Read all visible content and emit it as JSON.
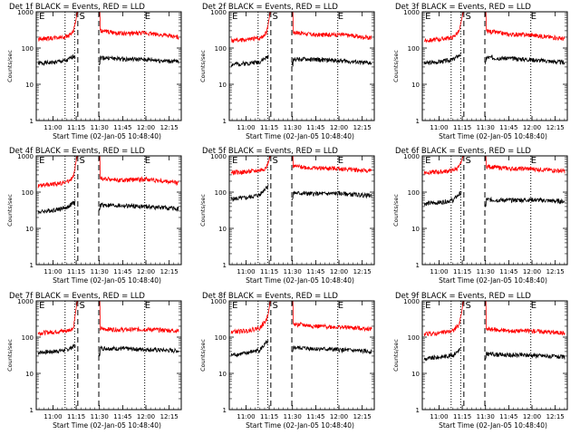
{
  "figure": {
    "axis_style": {
      "y_scale": "log",
      "ylim": [
        1,
        1000
      ],
      "yticks": [
        1,
        10,
        100,
        1000
      ],
      "ytick_labels": [
        "1",
        "10",
        "100",
        "1000"
      ],
      "xlim": [
        10.82,
        12.38
      ],
      "xticks": [
        11.0,
        11.25,
        11.5,
        11.75,
        12.0,
        12.25
      ],
      "xtick_labels": [
        "11:00",
        "11:15",
        "11:30",
        "11:45",
        "12:00",
        "12:15"
      ],
      "ylabel": "Counts/sec",
      "xlabel": "Start Time (02-Jan-05 10:48:40)",
      "event_color": "#000000",
      "lld_color": "#ff0000"
    },
    "markers": {
      "dotted": [
        11.13,
        11.233,
        11.987
      ],
      "dashed": [
        11.267,
        11.493
      ],
      "labels": [
        {
          "text": "E",
          "x": 10.85
        },
        {
          "text": "S",
          "x": 11.283
        },
        {
          "text": "E",
          "x": 11.987
        }
      ]
    }
  },
  "chart_data": [
    {
      "type": "line",
      "title": "Det 1f BLACK = Events, RED = LLD",
      "seed": 1,
      "series": [
        {
          "name": "Events",
          "color": "#000000",
          "x": [
            10.84,
            11.0,
            11.15,
            11.22,
            11.26,
            11.5,
            11.75,
            12.0,
            12.35
          ],
          "y": [
            38,
            40,
            45,
            60,
            62,
            55,
            50,
            48,
            42
          ]
        },
        {
          "name": "LLD",
          "color": "#ff0000",
          "x": [
            10.84,
            11.0,
            11.15,
            11.22,
            11.26,
            11.5,
            11.75,
            12.0,
            12.35
          ],
          "y": [
            180,
            190,
            210,
            280,
            900,
            300,
            250,
            260,
            200
          ]
        }
      ]
    },
    {
      "type": "line",
      "title": "Det 2f BLACK = Events, RED = LLD",
      "seed": 2,
      "series": [
        {
          "name": "Events",
          "color": "#000000",
          "x": [
            10.84,
            11.0,
            11.15,
            11.22,
            11.26,
            11.5,
            11.75,
            12.0,
            12.35
          ],
          "y": [
            35,
            38,
            42,
            55,
            60,
            50,
            48,
            45,
            38
          ]
        },
        {
          "name": "LLD",
          "color": "#ff0000",
          "x": [
            10.84,
            11.0,
            11.15,
            11.22,
            11.26,
            11.5,
            11.75,
            12.0,
            12.35
          ],
          "y": [
            160,
            170,
            190,
            260,
            900,
            280,
            230,
            240,
            190
          ]
        }
      ]
    },
    {
      "type": "line",
      "title": "Det 3f BLACK = Events, RED = LLD",
      "seed": 3,
      "series": [
        {
          "name": "Events",
          "color": "#000000",
          "x": [
            10.84,
            11.0,
            11.15,
            11.22,
            11.26,
            11.5,
            11.75,
            12.0,
            12.35
          ],
          "y": [
            38,
            42,
            48,
            65,
            70,
            55,
            52,
            48,
            40
          ]
        },
        {
          "name": "LLD",
          "color": "#ff0000",
          "x": [
            10.84,
            11.0,
            11.15,
            11.22,
            11.26,
            11.5,
            11.75,
            12.0,
            12.35
          ],
          "y": [
            160,
            175,
            200,
            300,
            950,
            300,
            240,
            230,
            180
          ]
        }
      ]
    },
    {
      "type": "line",
      "title": "Det 4f BLACK = Events, RED = LLD",
      "seed": 4,
      "series": [
        {
          "name": "Events",
          "color": "#000000",
          "x": [
            10.84,
            11.0,
            11.15,
            11.22,
            11.26,
            11.5,
            11.75,
            12.0,
            12.35
          ],
          "y": [
            28,
            32,
            38,
            50,
            55,
            45,
            42,
            40,
            35
          ]
        },
        {
          "name": "LLD",
          "color": "#ff0000",
          "x": [
            10.84,
            11.0,
            11.15,
            11.22,
            11.26,
            11.5,
            11.75,
            12.0,
            12.35
          ],
          "y": [
            150,
            165,
            190,
            260,
            900,
            240,
            210,
            230,
            180
          ]
        }
      ]
    },
    {
      "type": "line",
      "title": "Det 5f BLACK = Events, RED = LLD",
      "seed": 5,
      "series": [
        {
          "name": "Events",
          "color": "#000000",
          "x": [
            10.84,
            11.0,
            11.15,
            11.22,
            11.26,
            11.5,
            11.75,
            12.0,
            12.35
          ],
          "y": [
            65,
            70,
            85,
            140,
            160,
            95,
            90,
            92,
            80
          ]
        },
        {
          "name": "LLD",
          "color": "#ff0000",
          "x": [
            10.84,
            11.0,
            11.15,
            11.22,
            11.26,
            11.5,
            11.75,
            12.0,
            12.35
          ],
          "y": [
            350,
            360,
            400,
            480,
            1000,
            520,
            460,
            450,
            380
          ]
        }
      ]
    },
    {
      "type": "line",
      "title": "Det 6f BLACK = Events, RED = LLD",
      "seed": 6,
      "series": [
        {
          "name": "Events",
          "color": "#000000",
          "x": [
            10.84,
            11.0,
            11.15,
            11.22,
            11.26,
            11.5,
            11.75,
            12.0,
            12.35
          ],
          "y": [
            48,
            52,
            60,
            90,
            100,
            62,
            60,
            62,
            55
          ]
        },
        {
          "name": "LLD",
          "color": "#ff0000",
          "x": [
            10.84,
            11.0,
            11.15,
            11.22,
            11.26,
            11.5,
            11.75,
            12.0,
            12.35
          ],
          "y": [
            350,
            360,
            400,
            500,
            1000,
            520,
            450,
            440,
            380
          ]
        }
      ]
    },
    {
      "type": "line",
      "title": "Det 7f BLACK = Events, RED = LLD",
      "seed": 7,
      "series": [
        {
          "name": "Events",
          "color": "#000000",
          "x": [
            10.84,
            11.0,
            11.15,
            11.22,
            11.26,
            11.5,
            11.75,
            12.0,
            12.35
          ],
          "y": [
            38,
            40,
            45,
            55,
            58,
            50,
            48,
            46,
            42
          ]
        },
        {
          "name": "LLD",
          "color": "#ff0000",
          "x": [
            10.84,
            11.0,
            11.15,
            11.22,
            11.26,
            11.5,
            11.75,
            12.0,
            12.35
          ],
          "y": [
            130,
            140,
            150,
            180,
            900,
            170,
            160,
            165,
            150
          ]
        }
      ]
    },
    {
      "type": "line",
      "title": "Det 8f BLACK = Events, RED = LLD",
      "seed": 8,
      "series": [
        {
          "name": "Events",
          "color": "#000000",
          "x": [
            10.84,
            11.0,
            11.15,
            11.22,
            11.26,
            11.5,
            11.75,
            12.0,
            12.35
          ],
          "y": [
            32,
            36,
            45,
            70,
            75,
            52,
            48,
            45,
            40
          ]
        },
        {
          "name": "LLD",
          "color": "#ff0000",
          "x": [
            10.84,
            11.0,
            11.15,
            11.22,
            11.26,
            11.5,
            11.75,
            12.0,
            12.35
          ],
          "y": [
            140,
            150,
            180,
            300,
            900,
            230,
            200,
            190,
            170
          ]
        }
      ]
    },
    {
      "type": "line",
      "title": "Det 9f BLACK = Events, RED = LLD",
      "seed": 9,
      "series": [
        {
          "name": "Events",
          "color": "#000000",
          "x": [
            10.84,
            11.0,
            11.15,
            11.22,
            11.26,
            11.5,
            11.75,
            12.0,
            12.35
          ],
          "y": [
            25,
            28,
            32,
            45,
            50,
            35,
            32,
            32,
            28
          ]
        },
        {
          "name": "LLD",
          "color": "#ff0000",
          "x": [
            10.84,
            11.0,
            11.15,
            11.22,
            11.26,
            11.5,
            11.75,
            12.0,
            12.35
          ],
          "y": [
            120,
            130,
            150,
            230,
            900,
            170,
            150,
            150,
            130
          ]
        }
      ]
    }
  ]
}
